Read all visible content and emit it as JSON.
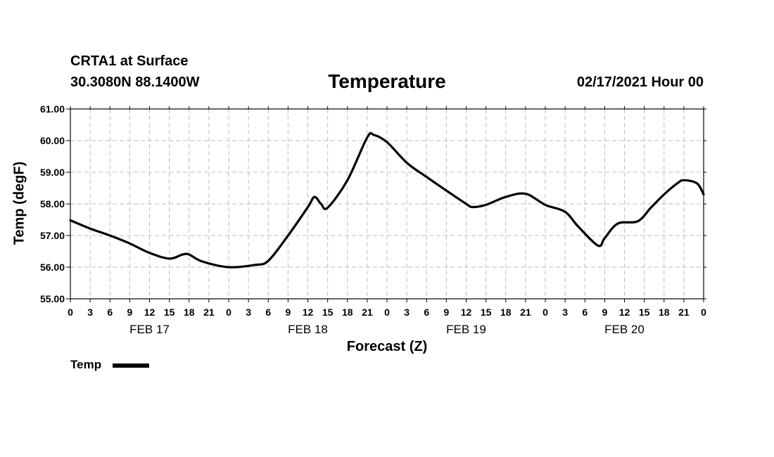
{
  "header": {
    "station": "CRTA1 at Surface",
    "coords": "30.3080N 88.1400W",
    "title": "Temperature",
    "datetime": "02/17/2021 Hour 00"
  },
  "legend": {
    "label": "Temp",
    "color": "#000000"
  },
  "chart_data": {
    "type": "line",
    "title": "Temperature",
    "xlabel": "Forecast (Z)",
    "ylabel": "Temp (degF)",
    "ylim": [
      55,
      61
    ],
    "xlim": [
      0,
      96
    ],
    "grid": true,
    "legend_position": "bottom-left",
    "y_ticks": [
      "55.00",
      "56.00",
      "57.00",
      "58.00",
      "59.00",
      "60.00",
      "61.00"
    ],
    "x_tick_labels": [
      "0",
      "3",
      "6",
      "9",
      "12",
      "15",
      "18",
      "21",
      "0",
      "3",
      "6",
      "9",
      "12",
      "15",
      "18",
      "21",
      "0",
      "3",
      "6",
      "9",
      "12",
      "15",
      "18",
      "21",
      "0",
      "3",
      "6",
      "9",
      "12",
      "15",
      "18",
      "21",
      "0"
    ],
    "day_labels": [
      {
        "label": "FEB 17",
        "at": 12
      },
      {
        "label": "FEB 18",
        "at": 36
      },
      {
        "label": "FEB 19",
        "at": 60
      },
      {
        "label": "FEB 20",
        "at": 84
      }
    ],
    "series": [
      {
        "name": "Temp",
        "x": [
          0,
          3,
          6,
          9,
          12,
          15,
          17,
          18,
          20,
          24,
          28,
          30,
          33,
          36,
          37,
          38,
          39,
          42,
          45,
          46,
          48,
          51,
          54,
          57,
          60,
          61,
          63,
          66,
          69,
          72,
          75,
          77,
          80,
          81,
          83,
          86,
          88,
          90,
          92,
          93,
          95,
          96
        ],
        "values": [
          57.48,
          57.22,
          57.0,
          56.75,
          56.45,
          56.27,
          56.4,
          56.4,
          56.18,
          56.0,
          56.07,
          56.2,
          57.0,
          57.9,
          58.22,
          58.0,
          57.88,
          58.75,
          60.1,
          60.18,
          59.95,
          59.3,
          58.85,
          58.42,
          58.0,
          57.9,
          57.97,
          58.22,
          58.32,
          57.97,
          57.75,
          57.28,
          56.68,
          56.92,
          57.38,
          57.45,
          57.88,
          58.3,
          58.65,
          58.75,
          58.65,
          58.3
        ]
      }
    ]
  }
}
